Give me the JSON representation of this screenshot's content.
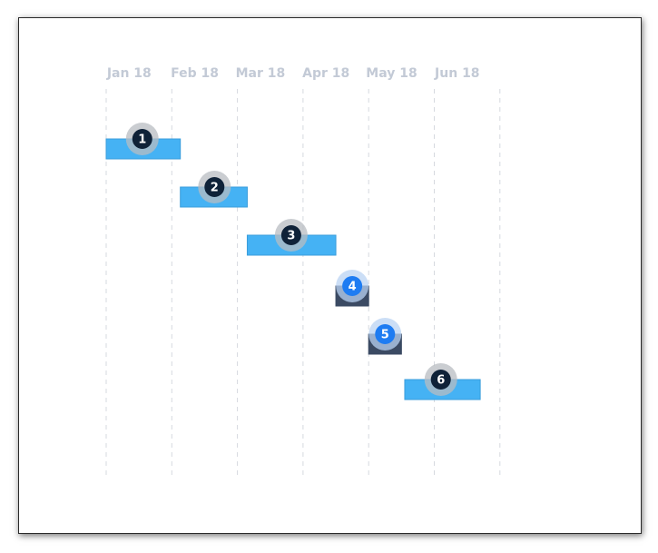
{
  "chart_data": {
    "type": "gantt",
    "x_axis": {
      "tick_labels": [
        "Jan 18",
        "Feb 18",
        "Mar 18",
        "Apr 18",
        "May 18",
        "Jun 18"
      ],
      "range_months": [
        0,
        6
      ]
    },
    "grid": true,
    "tasks": [
      {
        "label": "1",
        "start_month": 0.0,
        "end_month": 1.13,
        "style": "primary",
        "badge_at": 0.55
      },
      {
        "label": "2",
        "start_month": 1.13,
        "end_month": 2.15,
        "style": "primary",
        "badge_at": 1.65
      },
      {
        "label": "3",
        "start_month": 2.15,
        "end_month": 3.5,
        "style": "primary",
        "badge_at": 2.82
      },
      {
        "label": "4",
        "start_month": 3.5,
        "end_month": 4.0,
        "style": "milestone",
        "badge_at": 3.75
      },
      {
        "label": "5",
        "start_month": 4.0,
        "end_month": 4.5,
        "style": "milestone",
        "badge_at": 4.25
      },
      {
        "label": "6",
        "start_month": 4.55,
        "end_month": 5.7,
        "style": "primary",
        "badge_at": 5.1
      }
    ],
    "colors": {
      "bar_primary": "#45b2f4",
      "bar_primary_edge": "#3a9ddb",
      "bar_milestone": "#3b4a63",
      "badge_dark": "#0f2238",
      "badge_blue": "#1e7cf2",
      "halo_gray": "#b8bcc2",
      "halo_blue": "#b9d3f3",
      "grid": "#d6d9df",
      "tick_text": "#c3cad6"
    }
  }
}
